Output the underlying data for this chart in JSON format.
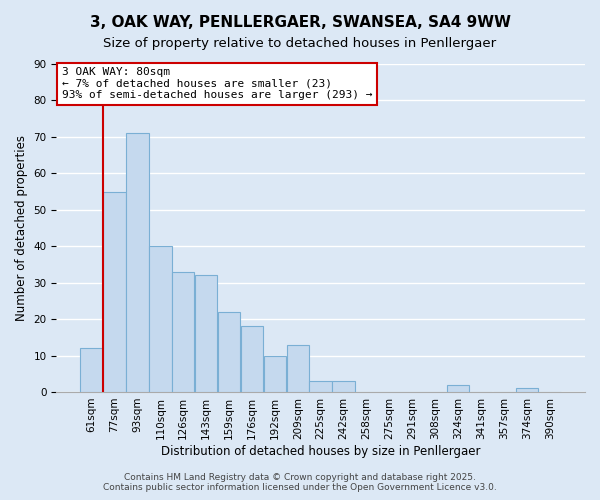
{
  "title": "3, OAK WAY, PENLLERGAER, SWANSEA, SA4 9WW",
  "subtitle": "Size of property relative to detached houses in Penllergaer",
  "xlabel": "Distribution of detached houses by size in Penllergaer",
  "ylabel": "Number of detached properties",
  "bar_color": "#c5d9ee",
  "bar_edge_color": "#7aafd4",
  "bg_color": "#dce8f5",
  "grid_color": "#ffffff",
  "annotation_title": "3 OAK WAY: 80sqm",
  "annotation_line1": "← 7% of detached houses are smaller (23)",
  "annotation_line2": "93% of semi-detached houses are larger (293) →",
  "annotation_box_color": "#ffffff",
  "annotation_box_edge": "#cc0000",
  "categories": [
    "61sqm",
    "77sqm",
    "93sqm",
    "110sqm",
    "126sqm",
    "143sqm",
    "159sqm",
    "176sqm",
    "192sqm",
    "209sqm",
    "225sqm",
    "242sqm",
    "258sqm",
    "275sqm",
    "291sqm",
    "308sqm",
    "324sqm",
    "341sqm",
    "357sqm",
    "374sqm",
    "390sqm"
  ],
  "values": [
    12,
    55,
    71,
    40,
    33,
    32,
    22,
    18,
    10,
    13,
    3,
    3,
    0,
    0,
    0,
    0,
    2,
    0,
    0,
    1,
    0
  ],
  "red_line_index": 1,
  "ylim": [
    0,
    90
  ],
  "yticks": [
    0,
    10,
    20,
    30,
    40,
    50,
    60,
    70,
    80,
    90
  ],
  "footer1": "Contains HM Land Registry data © Crown copyright and database right 2025.",
  "footer2": "Contains public sector information licensed under the Open Government Licence v3.0.",
  "title_fontsize": 11,
  "subtitle_fontsize": 9.5,
  "xlabel_fontsize": 8.5,
  "ylabel_fontsize": 8.5,
  "tick_fontsize": 7.5,
  "annotation_fontsize": 8,
  "footer_fontsize": 6.5
}
